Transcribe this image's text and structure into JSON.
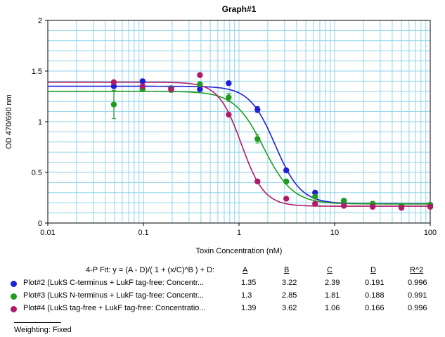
{
  "chart_data": {
    "type": "scatter",
    "title": "Graph#1",
    "xlabel": "Toxin Concentration (nM)",
    "ylabel": "OD 470/690 nm",
    "x_scale": "log",
    "xlim": [
      0.01,
      100
    ],
    "ylim": [
      0,
      2
    ],
    "x_tick_labels": [
      "0.01",
      "0.1",
      "1",
      "10",
      "100"
    ],
    "y_tick_labels": [
      "0",
      "0.5",
      "1",
      "1.5",
      "2"
    ],
    "y_ticks": [
      0,
      0.5,
      1,
      1.5,
      2
    ],
    "x_ticks": [
      0.01,
      0.1,
      1,
      10,
      100
    ],
    "grid": true,
    "series": [
      {
        "name": "Plot#2 (LukS C-terminus + LukF tag-free: Concentr...",
        "color": "#1f1fd6",
        "x": [
          0.049,
          0.098,
          0.195,
          0.39,
          0.78,
          1.56,
          3.12,
          6.25,
          12.5,
          25,
          50,
          100
        ],
        "y": [
          1.35,
          1.4,
          1.33,
          1.32,
          1.38,
          1.12,
          0.52,
          0.3,
          0.22,
          0.19,
          0.17,
          0.18
        ],
        "err": [
          0,
          0.02,
          0,
          0,
          0,
          0.03,
          0,
          0,
          0,
          0,
          0,
          0
        ],
        "fit": {
          "A": 1.35,
          "B": 3.22,
          "C": 2.39,
          "D": 0.191
        }
      },
      {
        "name": "Plot#3 (LukS N-terminus + LukF tag-free: Concentr...",
        "color": "#1f9b1f",
        "x": [
          0.049,
          0.098,
          0.195,
          0.39,
          0.78,
          1.56,
          3.12,
          6.25,
          12.5,
          25,
          50,
          100
        ],
        "y": [
          1.17,
          1.32,
          1.32,
          1.37,
          1.24,
          0.83,
          0.41,
          0.26,
          0.22,
          0.19,
          0.17,
          0.18
        ],
        "err": [
          0.14,
          0.02,
          0.03,
          0,
          0.04,
          0.04,
          0,
          0,
          0,
          0,
          0,
          0
        ],
        "fit": {
          "A": 1.3,
          "B": 2.85,
          "C": 1.81,
          "D": 0.188
        }
      },
      {
        "name": "Plot#4 (LukS tag-free + LukF tag-free: Concentratio...",
        "color": "#b01a6a",
        "x": [
          0.049,
          0.098,
          0.195,
          0.39,
          0.78,
          1.56,
          3.12,
          6.25,
          12.5,
          25,
          50,
          100
        ],
        "y": [
          1.39,
          1.35,
          1.32,
          1.46,
          1.07,
          0.41,
          0.24,
          0.19,
          0.17,
          0.16,
          0.15,
          0.16
        ],
        "err": [
          0,
          0,
          0,
          0,
          0,
          0,
          0,
          0,
          0,
          0,
          0,
          0
        ],
        "fit": {
          "A": 1.39,
          "B": 3.62,
          "C": 1.06,
          "D": 0.166
        }
      }
    ]
  },
  "legend": {
    "fit_label": "4-P Fit: y = (A - D)/( 1 + (x/C)^B ) + D:",
    "headers": [
      "A",
      "B",
      "C",
      "D",
      "R^2"
    ],
    "rows": [
      {
        "name": "Plot#2 (LukS C-terminus + LukF tag-free: Concentr...",
        "A": "1.35",
        "B": "3.22",
        "C": "2.39",
        "D": "0.191",
        "R2": "0.996",
        "color": "#1f1fd6"
      },
      {
        "name": "Plot#3 (LukS N-terminus + LukF tag-free: Concentr...",
        "A": "1.3",
        "B": "2.85",
        "C": "1.81",
        "D": "0.188",
        "R2": "0.991",
        "color": "#1f9b1f"
      },
      {
        "name": "Plot#4 (LukS tag-free + LukF tag-free: Concentratio...",
        "A": "1.39",
        "B": "3.62",
        "C": "1.06",
        "D": "0.166",
        "R2": "0.996",
        "color": "#b01a6a"
      }
    ],
    "weighting": "Weighting: Fixed"
  }
}
